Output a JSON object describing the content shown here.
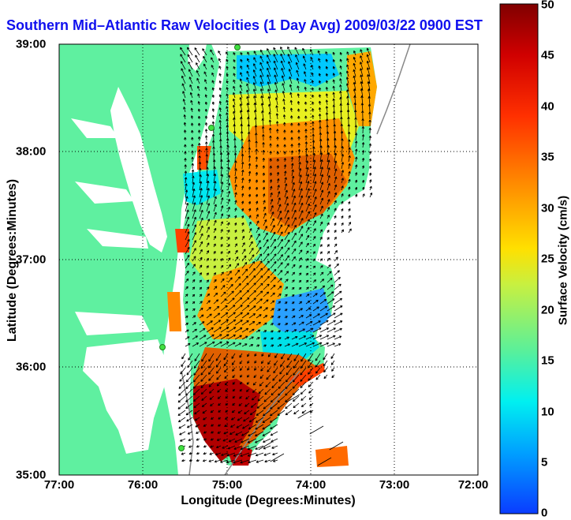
{
  "title": "Southern Mid–Atlantic Raw Velocities (1 Day Avg) 2009/03/22 0900 EST",
  "xlabel": "Longitude (Degrees:Minutes)",
  "ylabel": "Latitude (Degrees:Minutes)",
  "x_ticks": [
    "77:00",
    "76:00",
    "75:00",
    "74:00",
    "73:00",
    "72:00"
  ],
  "y_ticks": [
    "39:00",
    "38:00",
    "37:00",
    "36:00",
    "35:00"
  ],
  "colorbar": {
    "label": "Surface Velocity (cm/s)",
    "ticks": [
      "50",
      "45",
      "40",
      "35",
      "30",
      "25",
      "20",
      "15",
      "10",
      "5",
      "0"
    ],
    "range": [
      0,
      50
    ],
    "colors": [
      "#0a3cff",
      "#00b4ff",
      "#00f0f0",
      "#5af09a",
      "#c8f040",
      "#ffe000",
      "#ff9000",
      "#ff3000",
      "#d00000",
      "#800000"
    ]
  },
  "map": {
    "extent_lon": [
      -77,
      -72
    ],
    "extent_lat": [
      35,
      39
    ],
    "land_color": "#5ff0a0",
    "water_color": "#ffffff",
    "grid": "dotted"
  }
}
